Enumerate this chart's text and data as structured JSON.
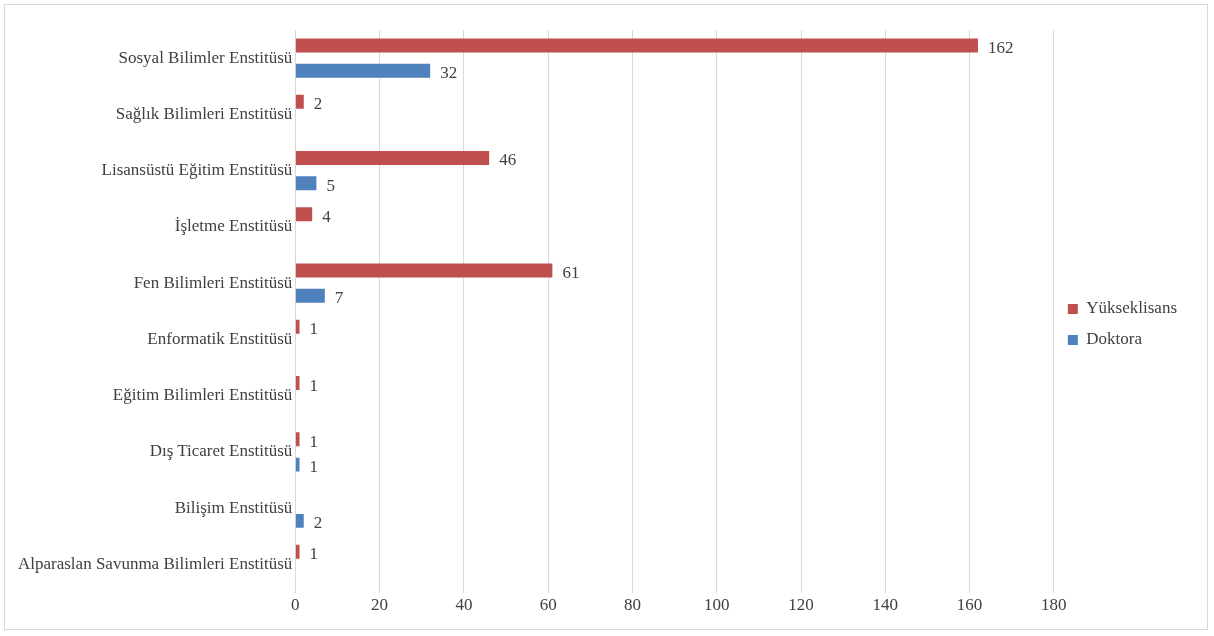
{
  "chart_data": {
    "type": "bar",
    "orientation": "horizontal",
    "categories": [
      "Sosyal Bilimler Enstitüsü",
      "Sağlık Bilimleri Enstitüsü",
      "Lisansüstü Eğitim Enstitüsü",
      "İşletme Enstitüsü",
      "Fen Bilimleri Enstitüsü",
      "Enformatik Enstitüsü",
      "Eğitim Bilimleri Enstitüsü",
      "Dış Ticaret Enstitüsü",
      "Bilişim Enstitüsü",
      "Alparaslan Savunma Bilimleri Enstitüsü"
    ],
    "series": [
      {
        "name": "Yükseklisans",
        "color": "#c0504d",
        "values": [
          162,
          2,
          46,
          4,
          61,
          1,
          1,
          1,
          null,
          1
        ]
      },
      {
        "name": "Doktora",
        "color": "#4f81bd",
        "values": [
          32,
          null,
          5,
          null,
          7,
          null,
          null,
          1,
          2,
          null
        ]
      }
    ],
    "xlim": [
      0,
      180
    ],
    "xticks": [
      0,
      20,
      40,
      60,
      80,
      100,
      120,
      140,
      160,
      180
    ],
    "grid": "x",
    "legend": "right",
    "data_labels": true
  }
}
